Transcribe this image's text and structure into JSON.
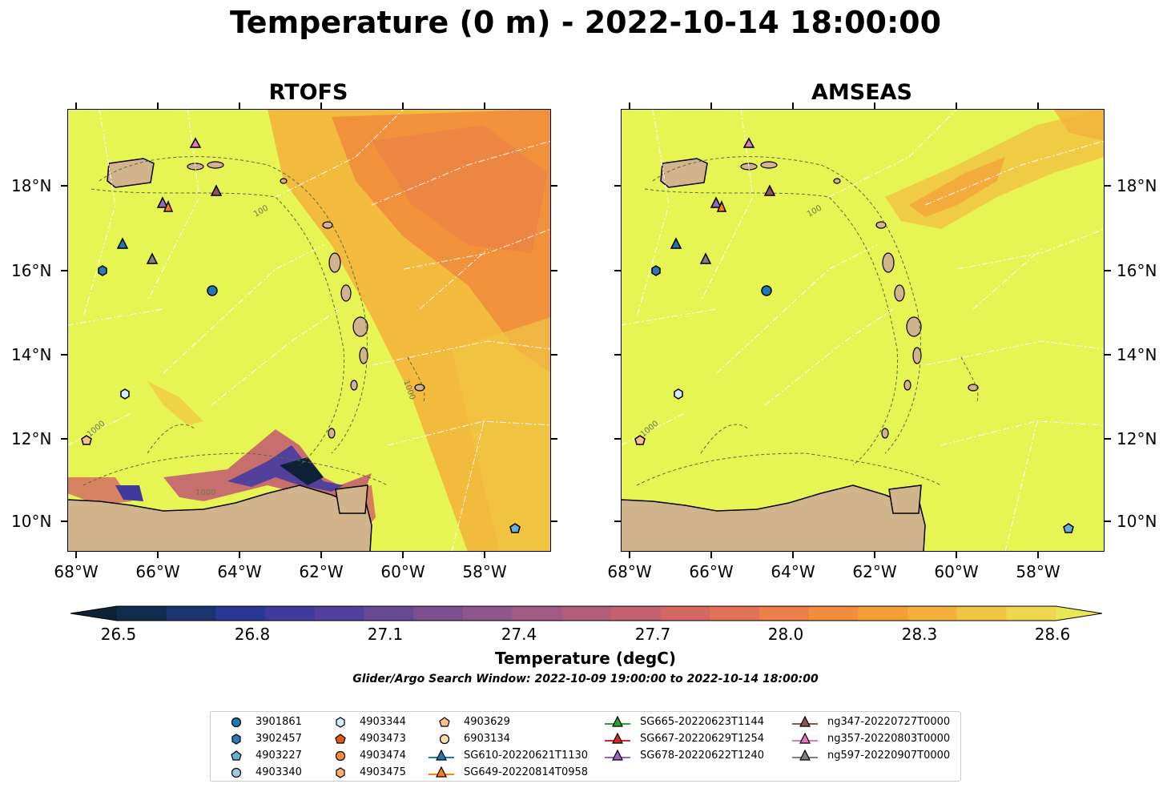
{
  "title": "Temperature (0 m) - 2022-10-14 18:00:00",
  "panels": [
    {
      "title": "RTOFS"
    },
    {
      "title": "AMSEAS"
    }
  ],
  "lat_labels": [
    "18°N",
    "16°N",
    "14°N",
    "12°N",
    "10°N"
  ],
  "lon_labels": [
    "68°W",
    "66°W",
    "64°W",
    "62°W",
    "60°W",
    "58°W"
  ],
  "colorbar": {
    "label": "Temperature (degC)",
    "ticks": [
      "26.5",
      "26.8",
      "27.1",
      "27.4",
      "27.7",
      "28.0",
      "28.3",
      "28.6"
    ],
    "range": [
      26.5,
      28.6
    ],
    "colors": [
      "#0d2234",
      "#112c4c",
      "#1a3470",
      "#2b3794",
      "#3f3a9c",
      "#53409c",
      "#674895",
      "#7b4f90",
      "#8e568c",
      "#a15b85",
      "#b25d7c",
      "#c36170",
      "#d36764",
      "#e27255",
      "#ec7e47",
      "#f18d3c",
      "#f49e36",
      "#f4b03a",
      "#f1c443",
      "#eed64f",
      "#e9e654"
    ]
  },
  "search_window": "Glider/Argo Search Window: 2022-10-09 19:00:00 to 2022-10-14 18:00:00",
  "legend": {
    "items": [
      {
        "label": "3901861",
        "marker": "circle",
        "color": "#1f77b4"
      },
      {
        "label": "3902457",
        "marker": "hexagon",
        "color": "#2f78b6"
      },
      {
        "label": "4903227",
        "marker": "pentagon",
        "color": "#6aaed6"
      },
      {
        "label": "4903340",
        "marker": "circle",
        "color": "#9ecae1"
      },
      {
        "label": "4903344",
        "marker": "hexagon",
        "color": "#d4ecfb"
      },
      {
        "label": "4903473",
        "marker": "pentagon",
        "color": "#e6550d"
      },
      {
        "label": "4903474",
        "marker": "circle",
        "color": "#fd8d3c"
      },
      {
        "label": "4903475",
        "marker": "hexagon",
        "color": "#fdae6b"
      },
      {
        "label": "4903629",
        "marker": "pentagon",
        "color": "#fdbf8a"
      },
      {
        "label": "6903134",
        "marker": "circle",
        "color": "#fdd9b5"
      },
      {
        "label": "SG610-20220621T1130",
        "marker": "triangle-line",
        "color": "#1f77b4"
      },
      {
        "label": "SG649-20220814T0958",
        "marker": "triangle-line",
        "color": "#ff7f0e"
      },
      {
        "label": "SG665-20220623T1144",
        "marker": "triangle-line",
        "color": "#2ca02c"
      },
      {
        "label": "SG667-20220629T1254",
        "marker": "triangle-line",
        "color": "#d62728"
      },
      {
        "label": "SG678-20220622T1240",
        "marker": "triangle-line",
        "color": "#9467bd"
      },
      {
        "label": "ng347-20220727T0000",
        "marker": "triangle-line",
        "color": "#8c564b"
      },
      {
        "label": "ng357-20220803T0000",
        "marker": "triangle-line",
        "color": "#e377c2"
      },
      {
        "label": "ng597-20220907T0000",
        "marker": "triangle-line",
        "color": "#7f7f7f"
      }
    ]
  },
  "contour_labels": [
    "100",
    "1000",
    "1000",
    "1000",
    "100",
    "1000"
  ],
  "colors": {
    "land": "#d2b48c",
    "ocean_warm": "#e6f553",
    "warm_patch": "#f08a3e",
    "cool_patch": "#3b3a98",
    "river": "#9fb7d5"
  }
}
